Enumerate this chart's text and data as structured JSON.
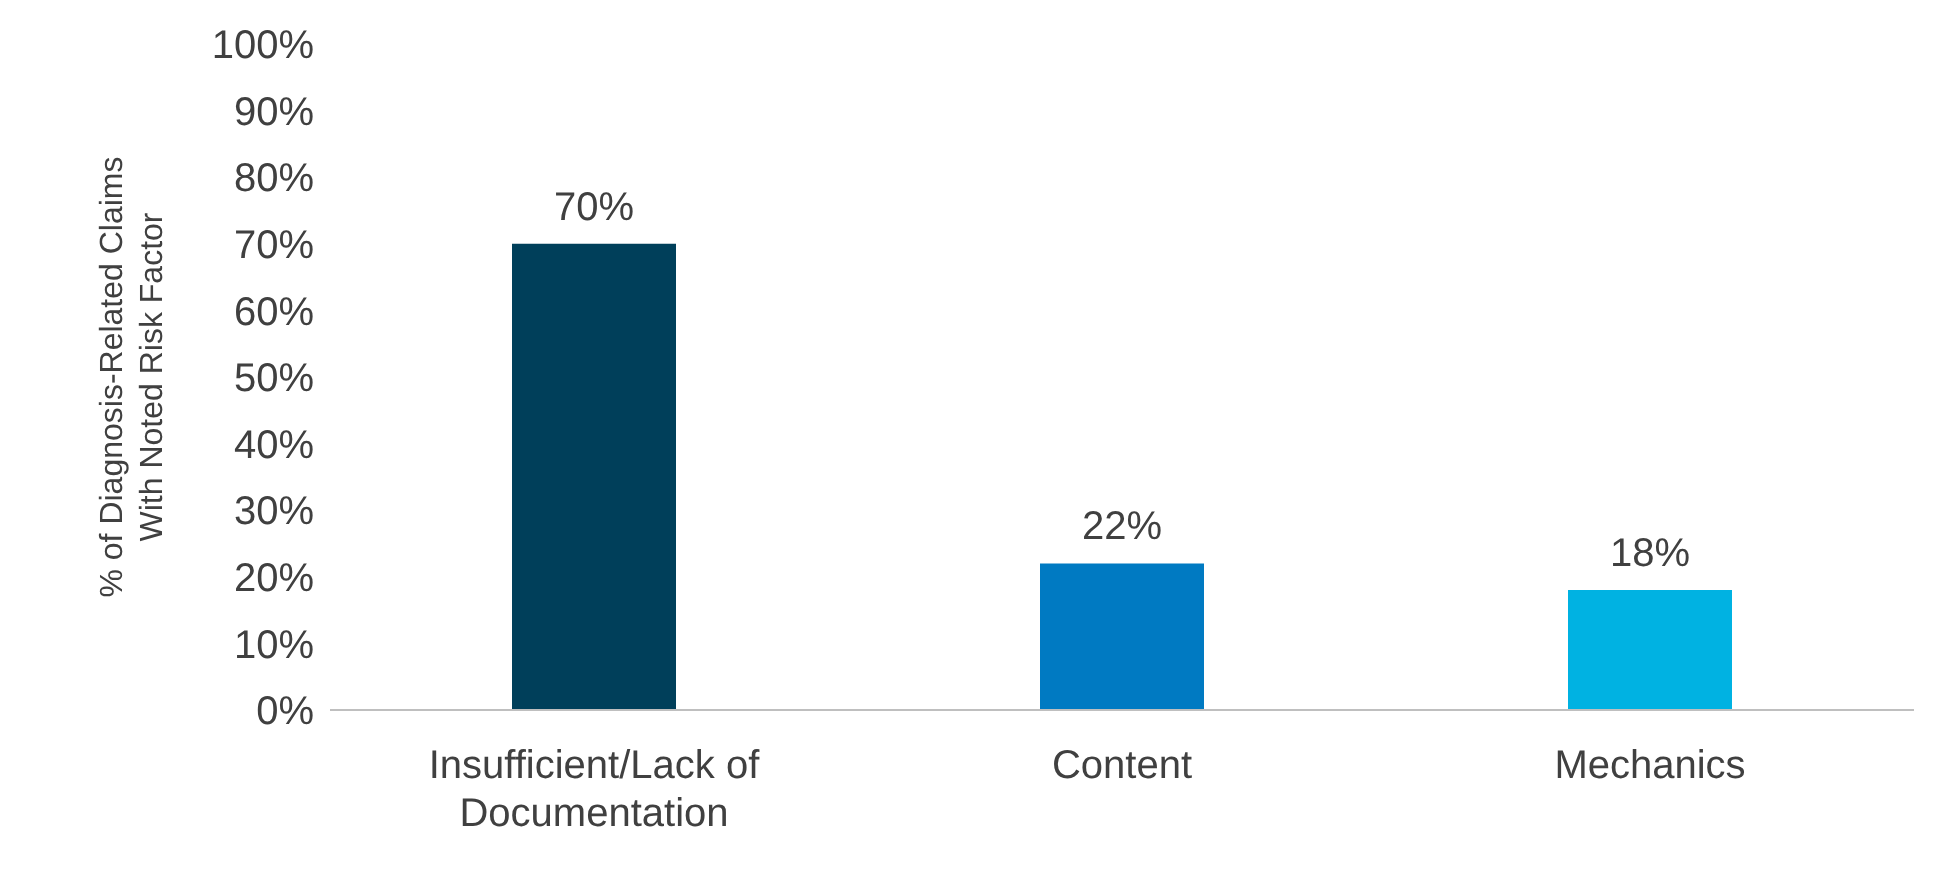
{
  "chart_data": {
    "type": "bar",
    "ylabel": "% of Diagnosis-Related Claims With Noted Risk Factor",
    "categories": [
      "Insufficient/Lack of Documentation",
      "Content",
      "Mechanics"
    ],
    "values": [
      70,
      22,
      18
    ],
    "colors": [
      "#003f5a",
      "#007ac2",
      "#00b2e2"
    ],
    "ylim": [
      0,
      100
    ],
    "yticks": [
      {
        "value": 0,
        "label": "0%"
      },
      {
        "value": 10,
        "label": "10%"
      },
      {
        "value": 20,
        "label": "20%"
      },
      {
        "value": 30,
        "label": "30%"
      },
      {
        "value": 40,
        "label": "40%"
      },
      {
        "value": 50,
        "label": "50%"
      },
      {
        "value": 60,
        "label": "60%"
      },
      {
        "value": 70,
        "label": "70%"
      },
      {
        "value": 80,
        "label": "80%"
      },
      {
        "value": 90,
        "label": "90%"
      },
      {
        "value": 100,
        "label": "100%"
      }
    ],
    "value_labels": [
      "70%",
      "22%",
      "18%"
    ],
    "grid": false,
    "legend": false
  }
}
